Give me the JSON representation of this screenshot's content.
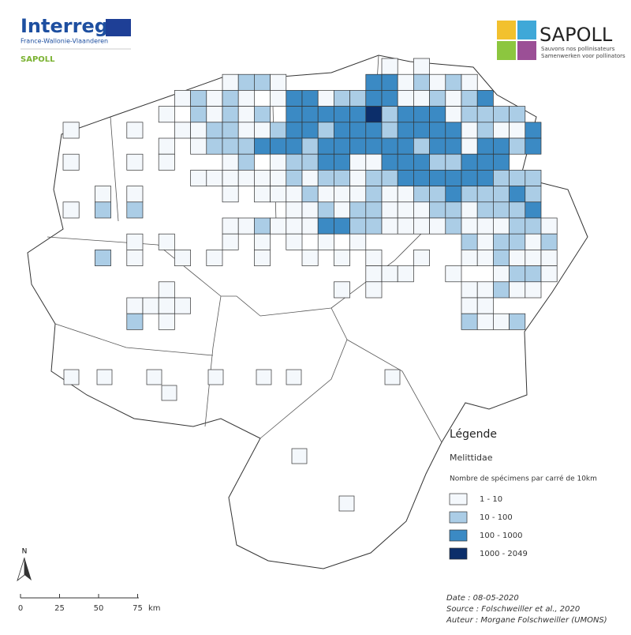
{
  "header": {
    "logo_left": "Interreg",
    "logo_left_sub": "France-Wallonie-Vlaanderen",
    "project": "SAPOLL",
    "logo_right": "SAPOLL",
    "logo_right_fr": "Sauvons nos pollinisateurs",
    "logo_right_nl": "Samenwerken voor pollinators"
  },
  "legend": {
    "title": "Légende",
    "taxon": "Melittidae",
    "subtitle": "Nombre de spécimens par carré de 10km",
    "classes": [
      {
        "label": "1 - 10",
        "color": "#f4f8fc"
      },
      {
        "label": "10 - 100",
        "color": "#abcde6"
      },
      {
        "label": "100 - 1000",
        "color": "#3b8ac4"
      },
      {
        "label": "1000 - 2049",
        "color": "#0c2e6a"
      }
    ]
  },
  "north": "N",
  "scale": {
    "ticks": [
      0,
      25,
      50,
      75
    ],
    "unit": "km"
  },
  "credits": [
    "Date : 08-05-2020",
    "Source : Folschweiller et al., 2020",
    "Auteur : Morgane Folschweiller (UMONS)"
  ]
}
